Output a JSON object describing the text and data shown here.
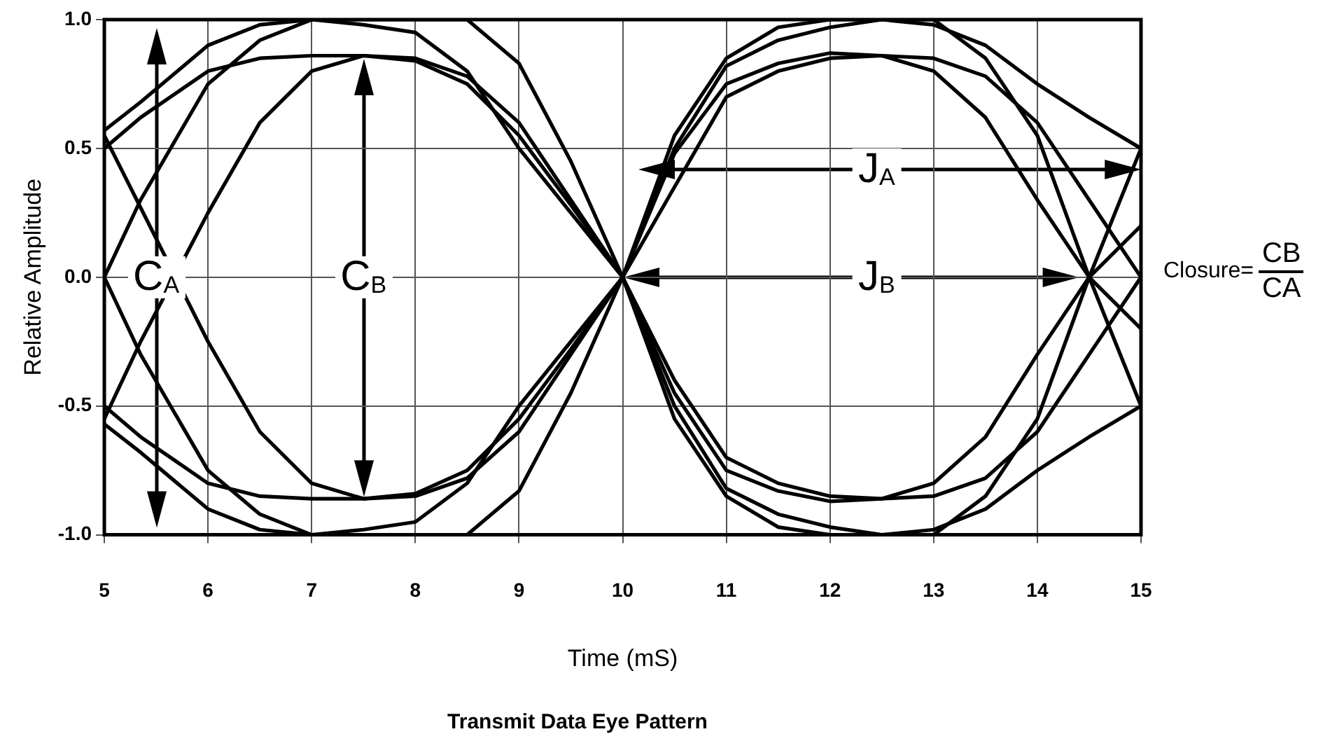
{
  "chart_data": {
    "type": "line",
    "title": "Transmit Data Eye Pattern",
    "xlabel": "Time (mS)",
    "ylabel": "Relative Amplitude",
    "x": [
      5,
      5.35,
      6,
      6.5,
      7,
      7.5,
      8,
      8.5,
      9,
      9.5,
      10,
      10.5,
      11,
      11.5,
      12,
      12.5,
      13,
      13.5,
      14,
      14.5,
      15
    ],
    "series": [
      {
        "color": "#000000",
        "values": [
          0.57,
          0.68,
          0.9,
          0.98,
          1,
          1,
          1,
          1,
          0.83,
          0.45,
          0,
          0.55,
          0.85,
          0.97,
          1,
          1,
          0.98,
          0.9,
          0.75,
          0.62,
          0.5
        ]
      },
      {
        "color": "#000000",
        "values": [
          0,
          0.3,
          0.75,
          0.92,
          1,
          0.98,
          0.95,
          0.8,
          0.5,
          0.25,
          0,
          -0.5,
          -0.82,
          -0.92,
          -0.97,
          -1,
          -1,
          -0.85,
          -0.55,
          0,
          0.5
        ]
      },
      {
        "color": "#000000",
        "values": [
          0.5,
          0.62,
          0.8,
          0.85,
          0.86,
          0.86,
          0.84,
          0.75,
          0.55,
          0.28,
          0,
          0.48,
          0.75,
          0.83,
          0.87,
          0.86,
          0.8,
          0.62,
          0.3,
          0,
          -0.2
        ]
      },
      {
        "color": "#000000",
        "values": [
          -0.55,
          -0.25,
          0.25,
          0.6,
          0.8,
          0.86,
          0.85,
          0.78,
          0.6,
          0.3,
          0,
          -0.4,
          -0.7,
          -0.8,
          -0.85,
          -0.86,
          -0.85,
          -0.78,
          -0.6,
          -0.3,
          0
        ]
      },
      {
        "color": "#000000",
        "values": [
          -0.57,
          -0.68,
          -0.9,
          -0.98,
          -1,
          -1,
          -1,
          -1,
          -0.83,
          -0.45,
          0,
          -0.55,
          -0.85,
          -0.97,
          -1,
          -1,
          -0.98,
          -0.9,
          -0.75,
          -0.62,
          -0.5
        ]
      },
      {
        "color": "#000000",
        "values": [
          0,
          -0.3,
          -0.75,
          -0.92,
          -1,
          -0.98,
          -0.95,
          -0.8,
          -0.5,
          -0.25,
          0,
          0.5,
          0.82,
          0.92,
          0.97,
          1,
          1,
          0.85,
          0.55,
          0,
          -0.5
        ]
      },
      {
        "color": "#000000",
        "values": [
          -0.5,
          -0.62,
          -0.8,
          -0.85,
          -0.86,
          -0.86,
          -0.84,
          -0.75,
          -0.55,
          -0.28,
          0,
          -0.45,
          -0.75,
          -0.83,
          -0.87,
          -0.86,
          -0.8,
          -0.62,
          -0.3,
          0,
          0.2
        ]
      },
      {
        "color": "#000000",
        "values": [
          0.55,
          0.27,
          -0.25,
          -0.6,
          -0.8,
          -0.86,
          -0.85,
          -0.78,
          -0.6,
          -0.3,
          0,
          0.35,
          0.7,
          0.8,
          0.85,
          0.86,
          0.85,
          0.78,
          0.6,
          0.3,
          0
        ]
      }
    ],
    "xlim": [
      5,
      15
    ],
    "xticks": [
      5,
      6,
      7,
      8,
      9,
      10,
      11,
      12,
      13,
      14,
      15
    ],
    "ylim": [
      -1,
      1
    ],
    "yticks": [
      {
        "value": -1,
        "label": "-1.0"
      },
      {
        "value": -0.5,
        "label": "-0.5"
      },
      {
        "value": 0,
        "label": "0.0"
      },
      {
        "value": 0.5,
        "label": "0.5"
      },
      {
        "value": 1,
        "label": "1.0"
      }
    ],
    "grid": true,
    "legend": false,
    "marker": "none",
    "line_style": "solid",
    "annotations": [
      {
        "text": "C$_{A}$",
        "x": 5.5,
        "y": 0
      },
      {
        "text": "C$_{B}$",
        "x": 7.5,
        "y": 0
      },
      {
        "text": "J$_{A}$",
        "x": 12.45,
        "y": 0.42
      },
      {
        "text": "J$_{B}$",
        "x": 12.45,
        "y": 0
      },
      "Closure=",
      "CB",
      "CA"
    ]
  }
}
